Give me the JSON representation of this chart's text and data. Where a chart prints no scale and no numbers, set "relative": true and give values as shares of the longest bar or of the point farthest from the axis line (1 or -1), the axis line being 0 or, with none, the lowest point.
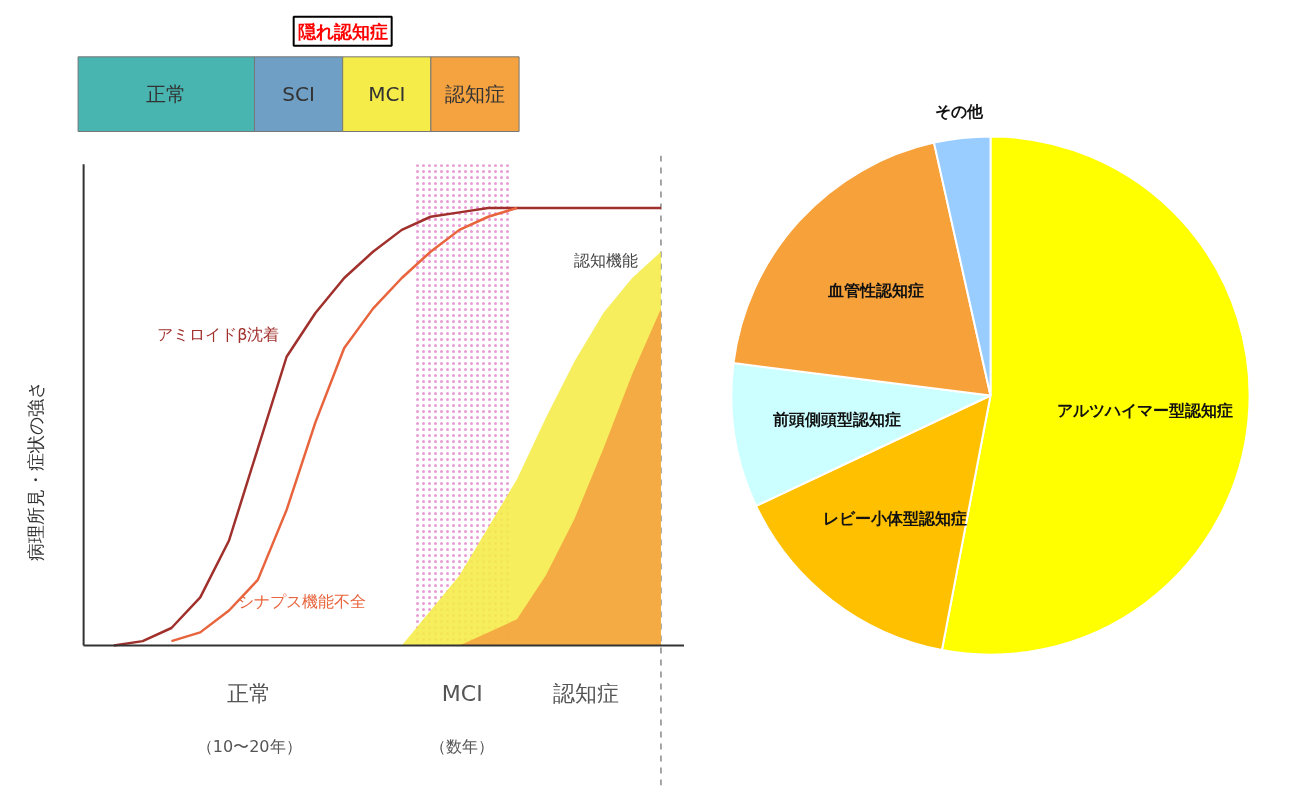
{
  "chart_data": [
    {
      "type": "other",
      "categories": [
        "正常",
        "SCI",
        "MCI",
        "認知症"
      ],
      "colors": [
        "#48b5b0",
        "#6f9fc4",
        "#f5ec4a",
        "#f4a340"
      ],
      "annotations": [
        "隠れ認知症"
      ]
    },
    {
      "type": "line",
      "relative": true,
      "grid": false,
      "ylabel": "病理所見・症状の強さ",
      "categories": [
        null,
        null,
        null,
        null,
        null,
        null,
        null,
        null,
        null,
        null,
        null,
        null,
        null,
        null,
        null,
        null,
        null,
        null,
        null,
        null,
        null
      ],
      "series": [
        {
          "name": "認知機能",
          "type": "area",
          "color": "#f5ec4a",
          "values": [
            null,
            null,
            null,
            null,
            null,
            null,
            null,
            null,
            null,
            null,
            null,
            0,
            0.08,
            0.16,
            0.27,
            0.38,
            0.52,
            0.65,
            0.76,
            0.84,
            0.9
          ]
        },
        {
          "type": "area",
          "color": "#f4a340",
          "values": [
            null,
            null,
            null,
            null,
            null,
            null,
            null,
            null,
            null,
            null,
            null,
            null,
            null,
            0,
            0.03,
            0.06,
            0.16,
            0.29,
            0.45,
            0.62,
            0.77
          ]
        },
        {
          "name": "アミロイドβ沈着",
          "color": "#a0302c",
          "values": [
            null,
            0,
            0.01,
            0.04,
            0.11,
            0.24,
            0.45,
            0.66,
            0.76,
            0.84,
            0.9,
            0.95,
            0.98,
            0.99,
            1,
            1,
            1,
            1,
            1,
            1,
            1
          ]
        },
        {
          "name": "シナプス機能不全",
          "color": "#e8643c",
          "values": [
            null,
            null,
            null,
            0.01,
            0.03,
            0.08,
            0.15,
            0.31,
            0.51,
            0.68,
            0.77,
            0.84,
            0.9,
            0.95,
            0.98,
            1,
            null,
            null,
            null,
            null,
            null
          ]
        }
      ],
      "annotations": [
        "正常",
        "（10〜20年）",
        "MCI",
        "（数年）",
        "認知症"
      ]
    },
    {
      "type": "pie",
      "categories": [
        "アルツハイマー型認知症",
        "レビー小体型認知症",
        "前頭側頭型認知症",
        "血管性認知症",
        "その他"
      ],
      "values": [
        53,
        15,
        9,
        19.5,
        3.5
      ],
      "colors": [
        "#ffff00",
        "#ffc000",
        "#ccffff",
        "#f7a13b",
        "#99ccff"
      ]
    }
  ]
}
